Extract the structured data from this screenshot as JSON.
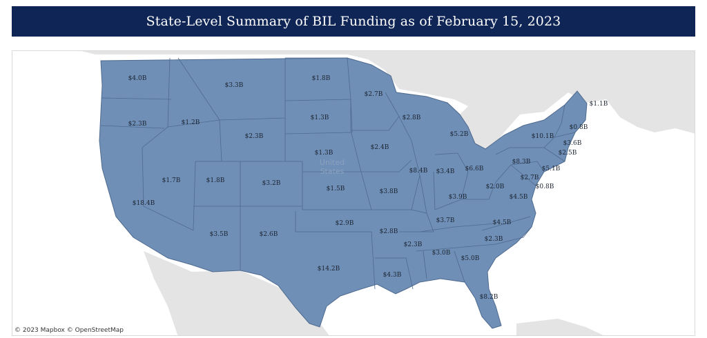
{
  "title": "State-Level Summary of BIL Funding as of February 15, 2023",
  "map": {
    "country_label_line1": "United",
    "country_label_line2": "States",
    "attribution": "© 2023 Mapbox  © OpenStreetMap",
    "colors": {
      "state_fill": "#6f8fb7",
      "state_border": "#4f6a8e",
      "land_other": "#e4e4e4",
      "water": "#ffffff",
      "banner": "#0f2556"
    }
  },
  "states": [
    {
      "state": "WA",
      "funding": "$4.0B"
    },
    {
      "state": "OR",
      "funding": "$2.3B"
    },
    {
      "state": "CA",
      "funding": "$18.4B"
    },
    {
      "state": "ID",
      "funding": "$1.2B"
    },
    {
      "state": "NV",
      "funding": "$1.7B"
    },
    {
      "state": "MT",
      "funding": "$3.3B"
    },
    {
      "state": "WY",
      "funding": "$2.3B"
    },
    {
      "state": "UT",
      "funding": "$1.8B"
    },
    {
      "state": "AZ",
      "funding": "$3.5B"
    },
    {
      "state": "CO",
      "funding": "$3.2B"
    },
    {
      "state": "NM",
      "funding": "$2.6B"
    },
    {
      "state": "ND",
      "funding": "$1.8B"
    },
    {
      "state": "SD",
      "funding": "$1.3B"
    },
    {
      "state": "NE",
      "funding": "$1.3B"
    },
    {
      "state": "KS",
      "funding": "$1.5B"
    },
    {
      "state": "OK",
      "funding": "$2.9B"
    },
    {
      "state": "TX",
      "funding": "$14.2B"
    },
    {
      "state": "MN",
      "funding": "$2.7B"
    },
    {
      "state": "IA",
      "funding": "$2.4B"
    },
    {
      "state": "MO",
      "funding": "$3.8B"
    },
    {
      "state": "AR",
      "funding": "$2.8B"
    },
    {
      "state": "LA",
      "funding": "$4.3B"
    },
    {
      "state": "WI",
      "funding": "$2.8B"
    },
    {
      "state": "IL",
      "funding": "$8.4B"
    },
    {
      "state": "MI",
      "funding": "$5.2B"
    },
    {
      "state": "IN",
      "funding": "$3.4B"
    },
    {
      "state": "OH",
      "funding": "$6.6B"
    },
    {
      "state": "KY",
      "funding": "$3.9B"
    },
    {
      "state": "TN",
      "funding": "$3.7B"
    },
    {
      "state": "MS",
      "funding": "$2.3B"
    },
    {
      "state": "AL",
      "funding": "$3.0B"
    },
    {
      "state": "GA",
      "funding": "$5.0B"
    },
    {
      "state": "FL",
      "funding": "$8.2B"
    },
    {
      "state": "SC",
      "funding": "$2.3B"
    },
    {
      "state": "NC",
      "funding": "$4.5B"
    },
    {
      "state": "VA",
      "funding": "$4.5B"
    },
    {
      "state": "WV",
      "funding": "$2.0B"
    },
    {
      "state": "MD",
      "funding": "$2.7B"
    },
    {
      "state": "DE",
      "funding": "$0.8B"
    },
    {
      "state": "NJ",
      "funding": "$5.1B"
    },
    {
      "state": "PA",
      "funding": "$8.3B"
    },
    {
      "state": "NY",
      "funding": "$10.1B"
    },
    {
      "state": "CT",
      "funding": "$2.5B"
    },
    {
      "state": "MA",
      "funding": "$3.6B"
    },
    {
      "state": "VT",
      "funding": "$0.8B"
    },
    {
      "state": "ME",
      "funding": "$1.1B"
    }
  ]
}
